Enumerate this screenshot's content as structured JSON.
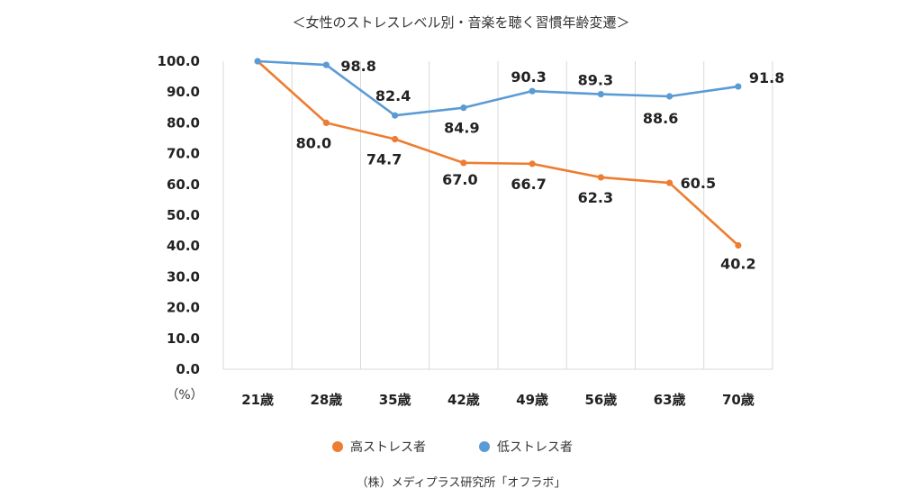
{
  "chart_data": {
    "type": "line",
    "title": "＜女性のストレスレベル別・音楽を聴く習慣年齢変遷＞",
    "y_unit": "（%）",
    "categories": [
      "21歳",
      "28歳",
      "35歳",
      "42歳",
      "49歳",
      "56歳",
      "63歳",
      "70歳"
    ],
    "ylim": [
      0,
      100
    ],
    "y_ticks": [
      "0.0",
      "10.0",
      "20.0",
      "30.0",
      "40.0",
      "50.0",
      "60.0",
      "70.0",
      "80.0",
      "90.0",
      "100.0"
    ],
    "grid": "vertical",
    "legend_position": "bottom",
    "series": [
      {
        "name": "高ストレス者",
        "color": "#ED7D31",
        "values": [
          100.0,
          80.0,
          74.7,
          67.0,
          66.7,
          62.3,
          60.5,
          40.2
        ],
        "labels": [
          "",
          "80.0",
          "74.7",
          "67.0",
          "66.7",
          "62.3",
          "60.5",
          "40.2"
        ]
      },
      {
        "name": "低ストレス者",
        "color": "#5B9BD5",
        "values": [
          100.0,
          98.8,
          82.4,
          84.9,
          90.3,
          89.3,
          88.6,
          91.8
        ],
        "labels": [
          "",
          "98.8",
          "82.4",
          "84.9",
          "90.3",
          "89.3",
          "88.6",
          "91.8"
        ]
      }
    ],
    "source": "（株）メディプラス研究所「オフラボ」"
  }
}
